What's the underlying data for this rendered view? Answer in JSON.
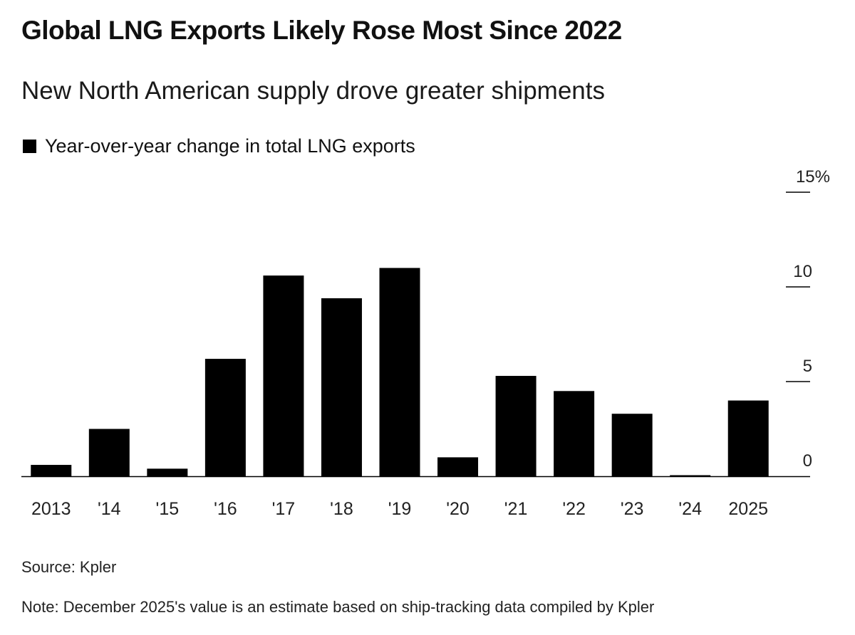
{
  "title": "Global LNG Exports Likely Rose Most Since 2022",
  "subtitle": "New North American supply drove greater shipments",
  "legend_label": "Year-over-year change in total LNG exports",
  "source": "Source: Kpler",
  "note": "Note: December 2025's value is an estimate based on ship-tracking data compiled by Kpler",
  "chart_data": {
    "type": "bar",
    "title": "Global LNG Exports Likely Rose Most Since 2022",
    "categories": [
      "2013",
      "'14",
      "'15",
      "'16",
      "'17",
      "'18",
      "'19",
      "'20",
      "'21",
      "'22",
      "'23",
      "'24",
      "2025"
    ],
    "series": [
      {
        "name": "Year-over-year change in total LNG exports",
        "values": [
          0.6,
          2.5,
          0.4,
          6.2,
          10.6,
          9.4,
          11.0,
          1.0,
          5.3,
          4.5,
          3.3,
          0.05,
          4.0
        ]
      }
    ],
    "ylim": [
      0,
      15
    ],
    "yticks": [
      0,
      5,
      10,
      15
    ],
    "ytick_labels": [
      "0",
      "5",
      "10",
      "15%"
    ],
    "ylabel": "",
    "xlabel": "",
    "bar_color": "#000000",
    "axis_position": "right",
    "grid": false,
    "legend_position": "top-left"
  }
}
